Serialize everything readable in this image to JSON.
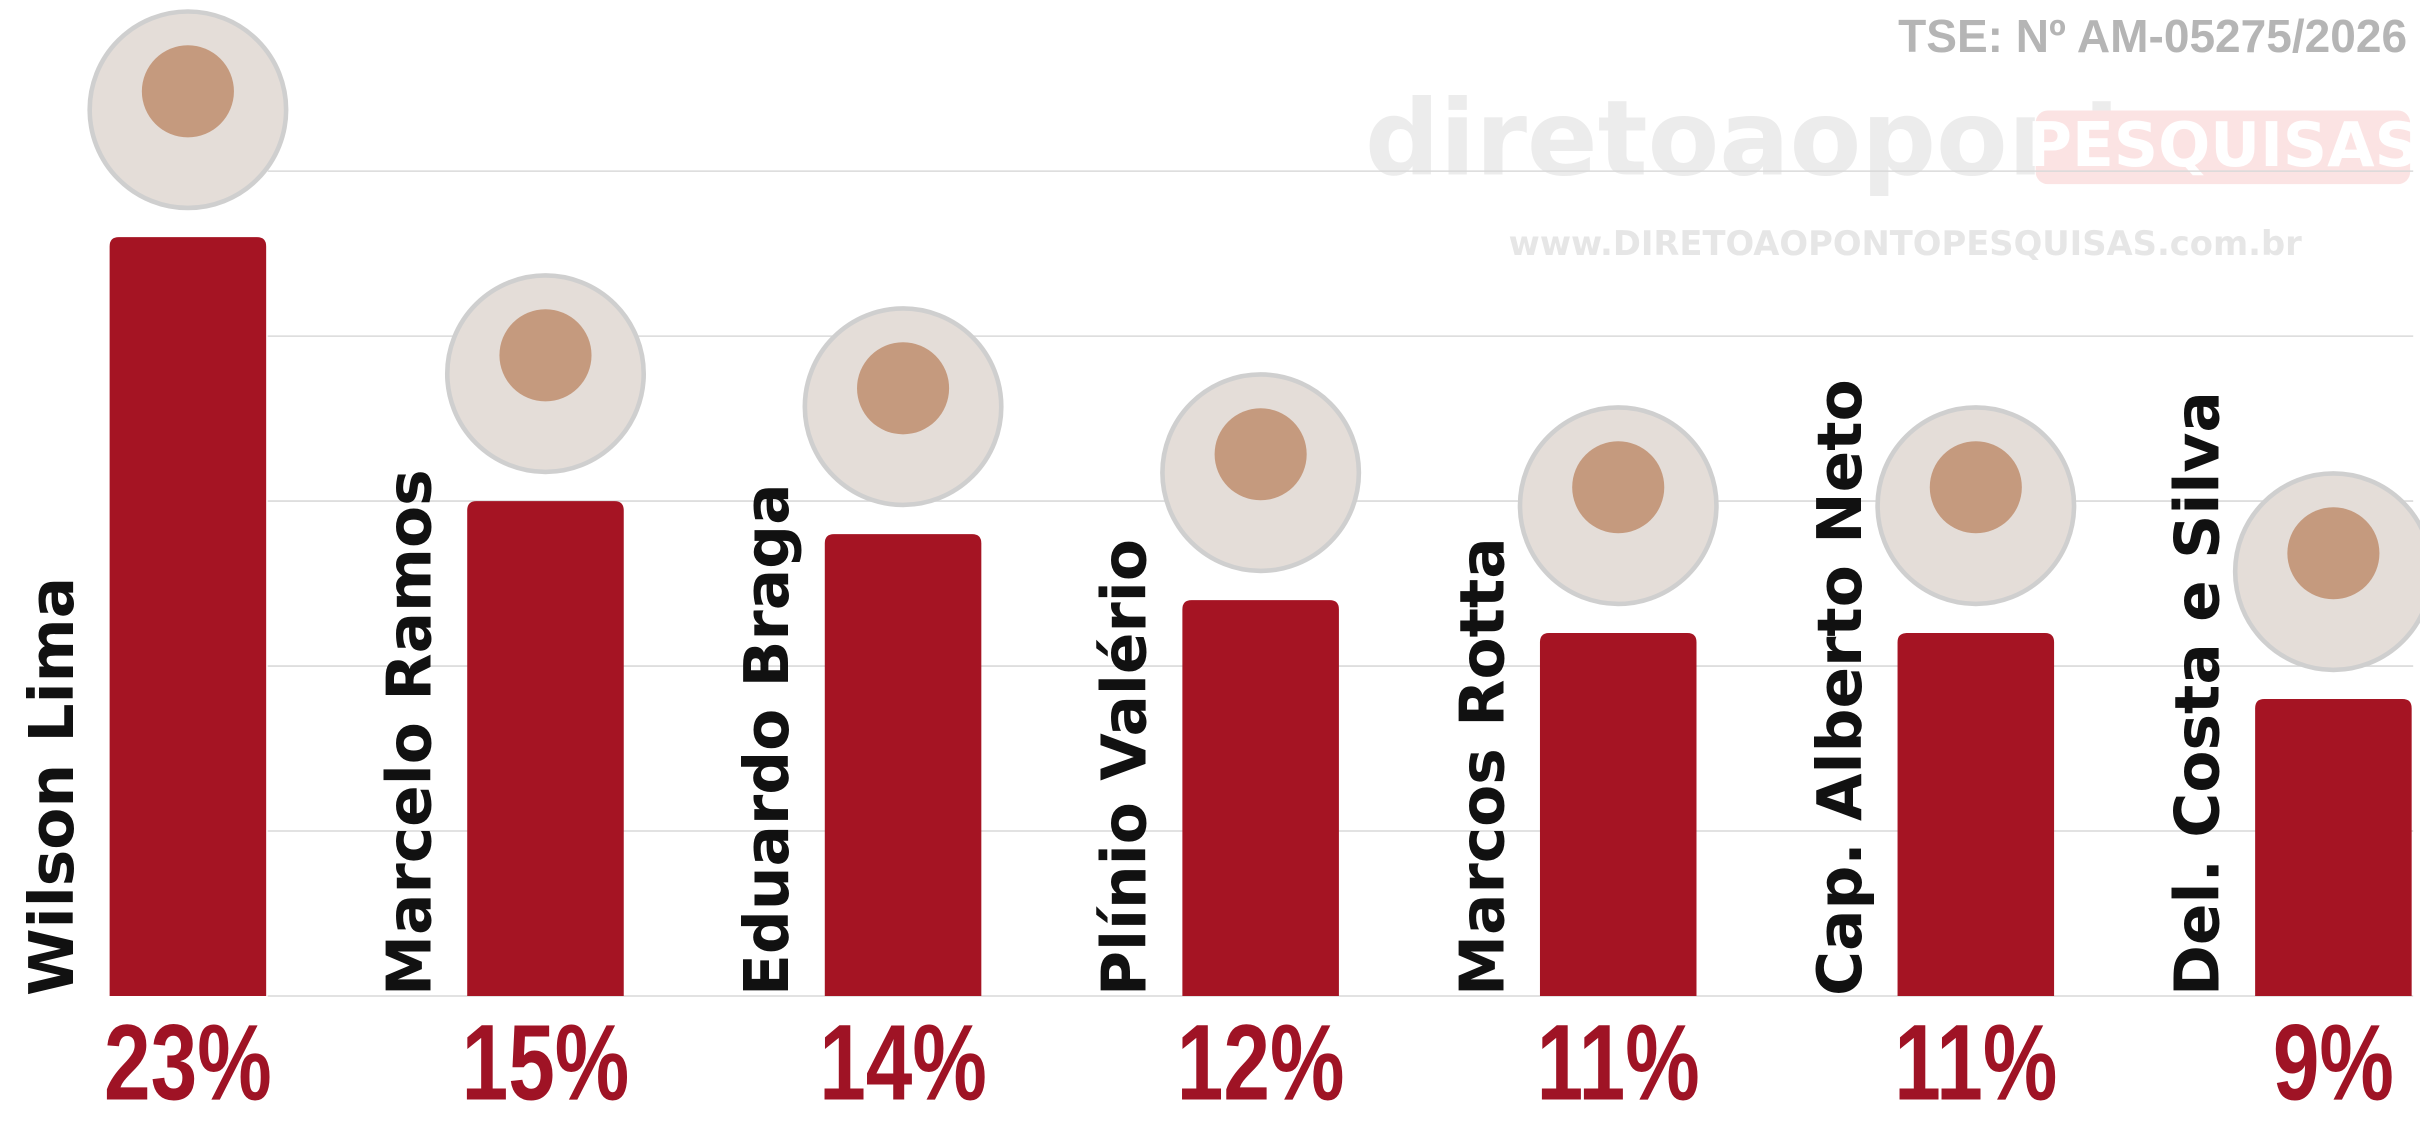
{
  "chart_data": {
    "type": "bar",
    "source": "TSE: Nº AM-05275/2026",
    "watermark": [
      "diretoaoponto",
      "PESQUISAS",
      "www.DIRETOAOPONTOPESQUISAS.com.br"
    ],
    "categories": [
      "Wilson Lima",
      "Marcelo Ramos",
      "Eduardo Braga",
      "Plínio Valério",
      "Marcos Rotta",
      "Cap. Alberto Neto",
      "Del. Costa e Silva"
    ],
    "values": [
      23,
      15,
      14,
      12,
      11,
      11,
      9
    ],
    "value_labels": [
      "23%",
      "15%",
      "14%",
      "12%",
      "11%",
      "11%",
      "9%"
    ],
    "color": "#a51423",
    "ylim": [
      0,
      25
    ],
    "yticks": [
      0,
      5,
      10,
      15,
      20,
      25
    ],
    "grid": true
  }
}
